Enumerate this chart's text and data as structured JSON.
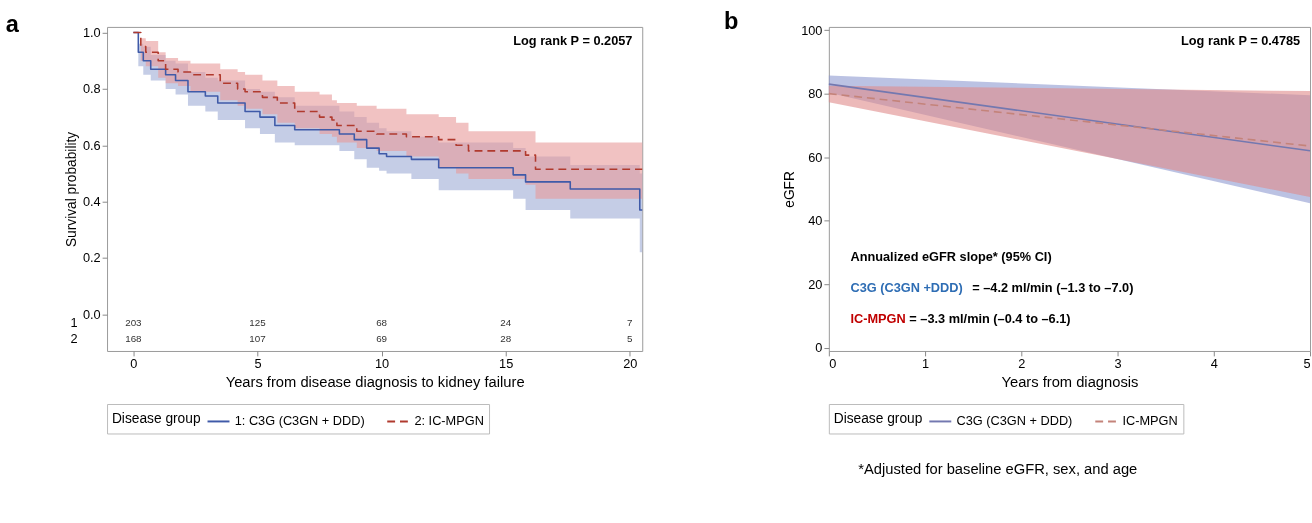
{
  "chart_data": [
    {
      "type": "step",
      "title": "a",
      "xlabel": "Years from disease diagnosis to kidney failure",
      "ylabel": "Survival probability",
      "legend_title": "Disease group",
      "legend": "bottom",
      "grid": false,
      "xlim": [
        -1.06,
        20.5
      ],
      "xticks": [
        0,
        5,
        10,
        15,
        20
      ],
      "ylim": [
        -0.13,
        1.02
      ],
      "yticks": [
        {
          "value": 0,
          "label": "0.0"
        },
        0.2,
        0.4,
        0.6,
        0.8,
        {
          "value": 1,
          "label": "1.0"
        }
      ],
      "series": [
        {
          "name": "1: C3G (C3GN + DDD)",
          "color": "#3f5aa8",
          "line_style": "solid",
          "x": [
            0,
            0.2,
            0.4,
            0.7,
            1.3,
            1.7,
            2.2,
            2.9,
            3.4,
            4.5,
            5.1,
            5.7,
            6.5,
            8.3,
            8.9,
            9.4,
            9.9,
            10.2,
            11.2,
            12.3,
            15.3,
            15.8,
            17.6,
            20.4,
            20.5
          ],
          "values": [
            1.0,
            0.93,
            0.9,
            0.87,
            0.85,
            0.83,
            0.79,
            0.775,
            0.75,
            0.72,
            0.7,
            0.67,
            0.655,
            0.64,
            0.62,
            0.59,
            0.57,
            0.56,
            0.55,
            0.52,
            0.495,
            0.47,
            0.445,
            0.37,
            0.37
          ],
          "upper": [
            1.0,
            0.96,
            0.95,
            0.92,
            0.9,
            0.89,
            0.86,
            0.84,
            0.83,
            0.8,
            0.79,
            0.77,
            0.74,
            0.72,
            0.7,
            0.68,
            0.66,
            0.65,
            0.63,
            0.61,
            0.59,
            0.56,
            0.53,
            0.5,
            0.5
          ],
          "lower": [
            1.0,
            0.88,
            0.85,
            0.83,
            0.8,
            0.78,
            0.74,
            0.72,
            0.69,
            0.66,
            0.64,
            0.61,
            0.6,
            0.58,
            0.55,
            0.52,
            0.51,
            0.5,
            0.48,
            0.44,
            0.41,
            0.37,
            0.34,
            0.22,
            0.22
          ]
        },
        {
          "name": "2: IC-MPGN",
          "color": "#b03a2e",
          "line_style": "dashed",
          "x": [
            0,
            0.3,
            0.5,
            1.0,
            1.3,
            1.8,
            2.3,
            3.5,
            4.2,
            4.5,
            5.2,
            5.8,
            6.5,
            7.5,
            8.0,
            8.2,
            9.0,
            9.8,
            11.0,
            12.3,
            13.0,
            13.5,
            15.8,
            16.2,
            20.5
          ],
          "values": [
            1.0,
            0.95,
            0.93,
            0.9,
            0.87,
            0.86,
            0.85,
            0.82,
            0.8,
            0.79,
            0.77,
            0.75,
            0.72,
            0.7,
            0.69,
            0.67,
            0.65,
            0.64,
            0.63,
            0.62,
            0.6,
            0.58,
            0.565,
            0.515,
            0.515
          ],
          "upper": [
            1.0,
            0.98,
            0.97,
            0.93,
            0.91,
            0.9,
            0.89,
            0.87,
            0.86,
            0.85,
            0.83,
            0.81,
            0.79,
            0.78,
            0.76,
            0.75,
            0.74,
            0.73,
            0.71,
            0.7,
            0.68,
            0.65,
            0.65,
            0.61,
            0.61
          ],
          "lower": [
            1.0,
            0.9,
            0.88,
            0.84,
            0.82,
            0.81,
            0.79,
            0.76,
            0.74,
            0.73,
            0.71,
            0.68,
            0.66,
            0.64,
            0.63,
            0.61,
            0.59,
            0.58,
            0.56,
            0.52,
            0.5,
            0.48,
            0.46,
            0.41,
            0.41
          ]
        }
      ],
      "annotations": [
        "Log rank P = 0.2057",
        "1",
        "203",
        "125",
        "68",
        "24",
        "7",
        "2",
        "168",
        "107",
        "69",
        "28",
        "5"
      ]
    },
    {
      "type": "line",
      "title": "b",
      "xlabel": "Years from diagnosis",
      "ylabel": "eGFR",
      "legend_title": "Disease group",
      "legend": "bottom",
      "grid": false,
      "xlim": [
        0,
        5
      ],
      "xticks": [
        0,
        1,
        2,
        3,
        4,
        5
      ],
      "ylim": [
        -1,
        101
      ],
      "yticks": [
        0,
        20,
        40,
        60,
        80,
        100
      ],
      "series": [
        {
          "name": "C3G (C3GN + DDD)",
          "color": "#7378b0",
          "line_style": "solid",
          "x": [
            0,
            5
          ],
          "values": [
            83,
            62
          ],
          "lower": [
            80.3,
            45.5
          ],
          "upper": [
            85.7,
            79.5
          ]
        },
        {
          "name": "IC-MPGN",
          "color": "#c4837a",
          "line_style": "dashed",
          "x": [
            0,
            5
          ],
          "values": [
            80,
            63.5
          ],
          "lower": [
            77.3,
            47.5
          ],
          "upper": [
            82.5,
            80.8
          ]
        }
      ],
      "annotations": [
        "Log rank P = 0.4785",
        "Annualized eGFR slope* (95% CI)",
        "C3G (C3GN +DDD)",
        "= –4.2 ml/min (–1.3 to –7.0)",
        "IC-MPGN",
        "= –3.3 ml/min (–0.4 to –6.1)",
        "*Adjusted for baseline eGFR, sex, and age"
      ]
    }
  ]
}
